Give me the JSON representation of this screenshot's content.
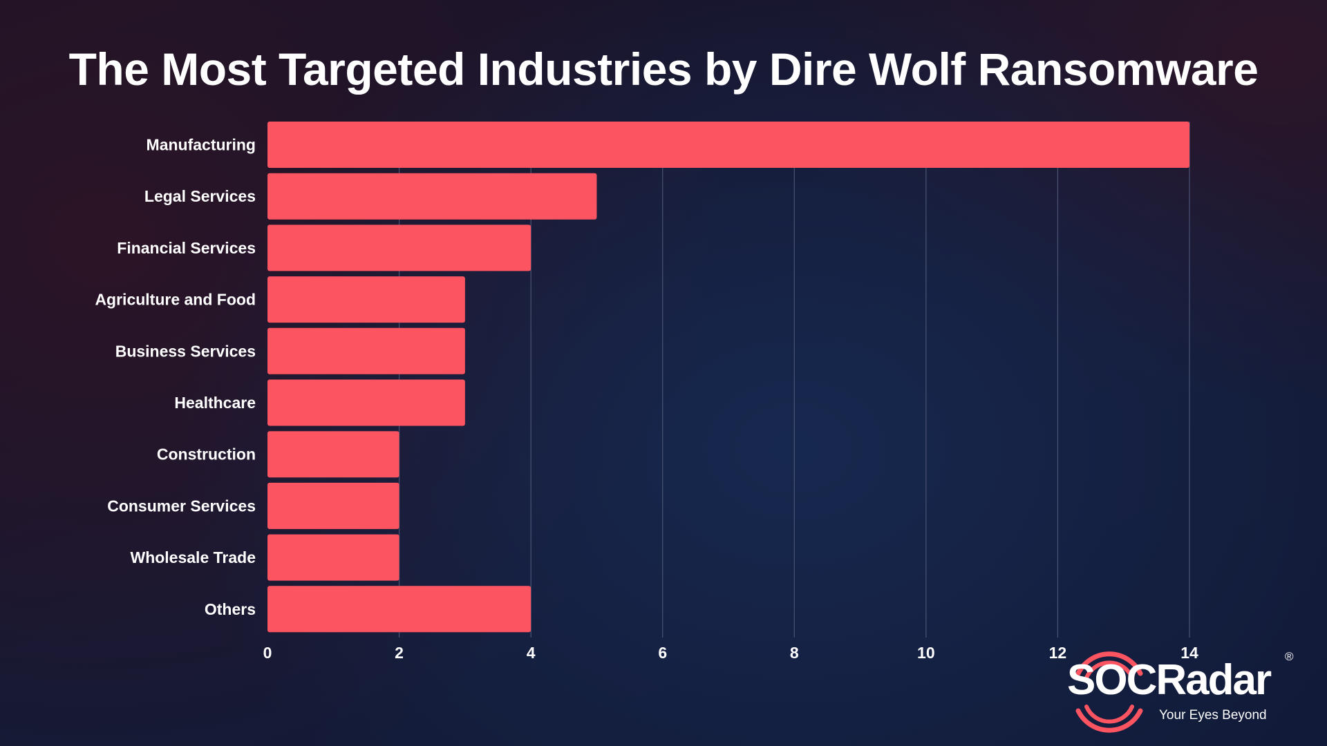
{
  "chart_data": {
    "type": "bar",
    "orientation": "horizontal",
    "title": "The Most Targeted Industries by Dire Wolf Ransomware",
    "categories": [
      "Manufacturing",
      "Legal Services",
      "Financial Services",
      "Agriculture and Food",
      "Business Services",
      "Healthcare",
      "Construction",
      "Consumer Services",
      "Wholesale Trade",
      "Others"
    ],
    "values": [
      14,
      5,
      4,
      3,
      3,
      3,
      2,
      2,
      2,
      4
    ],
    "xlabel": "",
    "ylabel": "",
    "xlim": [
      0,
      14
    ],
    "xticks": [
      "0",
      "2",
      "4",
      "6",
      "8",
      "10",
      "12",
      "14"
    ],
    "grid": "vertical",
    "bar_color": "#fd5461"
  },
  "logo": {
    "name": "SOCRadar",
    "tagline": "Your Eyes Beyond",
    "registered_mark": "®",
    "accent_color": "#fd5461"
  }
}
